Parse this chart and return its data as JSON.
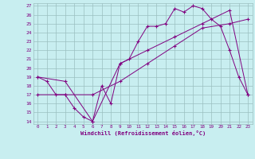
{
  "xlabel": "Windchill (Refroidissement éolien,°C)",
  "bg_color": "#c8eef0",
  "line_color": "#800080",
  "grid_color": "#9bbfc0",
  "ylim": [
    14,
    27
  ],
  "xlim": [
    -0.5,
    23.5
  ],
  "yticks": [
    14,
    15,
    16,
    17,
    18,
    19,
    20,
    21,
    22,
    23,
    24,
    25,
    26,
    27
  ],
  "xticks": [
    0,
    1,
    2,
    3,
    4,
    5,
    6,
    7,
    8,
    9,
    10,
    11,
    12,
    13,
    14,
    15,
    16,
    17,
    18,
    19,
    20,
    21,
    22,
    23
  ],
  "line1_x": [
    0,
    1,
    2,
    3,
    4,
    5,
    6,
    7,
    8,
    9,
    10,
    11,
    12,
    13,
    14,
    15,
    16,
    17,
    18,
    19,
    20,
    21,
    22,
    23
  ],
  "line1_y": [
    19,
    18.5,
    17,
    17,
    15.5,
    14.5,
    14,
    18,
    16,
    20.5,
    21,
    23,
    24.7,
    24.7,
    25,
    26.7,
    26.3,
    27,
    26.7,
    25.5,
    24.7,
    22,
    19,
    17
  ],
  "line2_x": [
    0,
    3,
    6,
    9,
    12,
    15,
    18,
    21,
    23
  ],
  "line2_y": [
    17,
    17,
    17,
    18.5,
    20.5,
    22.5,
    24.5,
    25,
    25.5
  ],
  "line3_x": [
    0,
    3,
    6,
    9,
    12,
    15,
    18,
    21,
    23
  ],
  "line3_y": [
    19,
    18.5,
    14,
    20.5,
    22,
    23.5,
    25,
    26.5,
    17
  ]
}
